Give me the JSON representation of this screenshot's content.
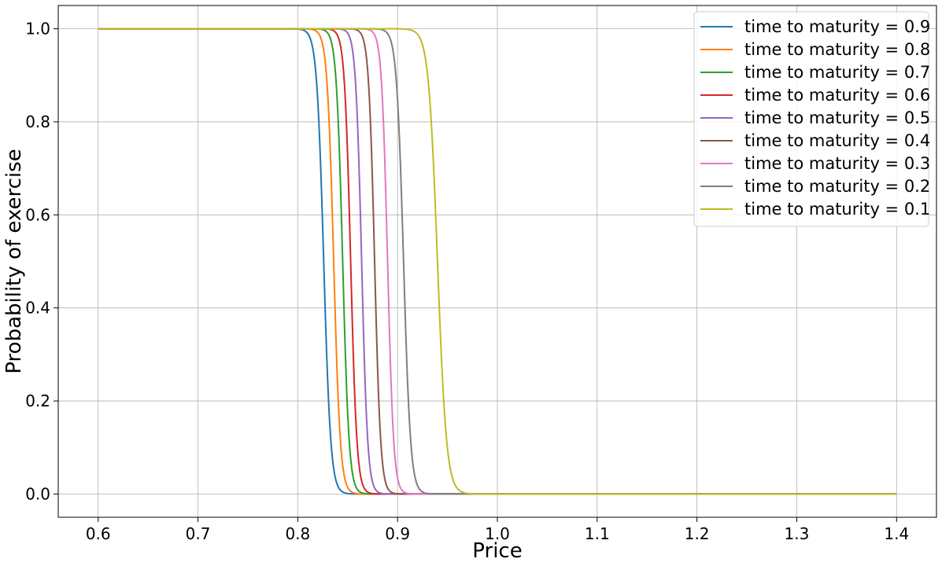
{
  "chart_data": {
    "type": "line",
    "xlabel": "Price",
    "ylabel": "Probability of exercise",
    "xlim": [
      0.56,
      1.44
    ],
    "ylim": [
      -0.05,
      1.05
    ],
    "x_ticks": [
      "0.6",
      "0.7",
      "0.8",
      "0.9",
      "1.0",
      "1.1",
      "1.2",
      "1.3",
      "1.4"
    ],
    "y_ticks": [
      "0.0",
      "0.2",
      "0.4",
      "0.6",
      "0.8",
      "1.0"
    ],
    "grid": true,
    "legend_position": "top-right",
    "x_range": [
      0.6,
      1.4
    ],
    "series": [
      {
        "name": "time to maturity = 0.9",
        "color": "#1f77b4",
        "midpoint": 0.826,
        "steepness": 0.0035
      },
      {
        "name": "time to maturity = 0.8",
        "color": "#ff7f0e",
        "midpoint": 0.836,
        "steepness": 0.0033
      },
      {
        "name": "time to maturity = 0.7",
        "color": "#2ca02c",
        "midpoint": 0.845,
        "steepness": 0.0032
      },
      {
        "name": "time to maturity = 0.6",
        "color": "#d62728",
        "midpoint": 0.853,
        "steepness": 0.0031
      },
      {
        "name": "time to maturity = 0.5",
        "color": "#9467bd",
        "midpoint": 0.864,
        "steepness": 0.003
      },
      {
        "name": "time to maturity = 0.4",
        "color": "#8c564b",
        "midpoint": 0.877,
        "steepness": 0.003
      },
      {
        "name": "time to maturity = 0.3",
        "color": "#e377c2",
        "midpoint": 0.89,
        "steepness": 0.003
      },
      {
        "name": "time to maturity = 0.2",
        "color": "#7f7f7f",
        "midpoint": 0.906,
        "steepness": 0.0035
      },
      {
        "name": "time to maturity = 0.1",
        "color": "#bcbd22",
        "midpoint": 0.94,
        "steepness": 0.0045
      }
    ]
  }
}
